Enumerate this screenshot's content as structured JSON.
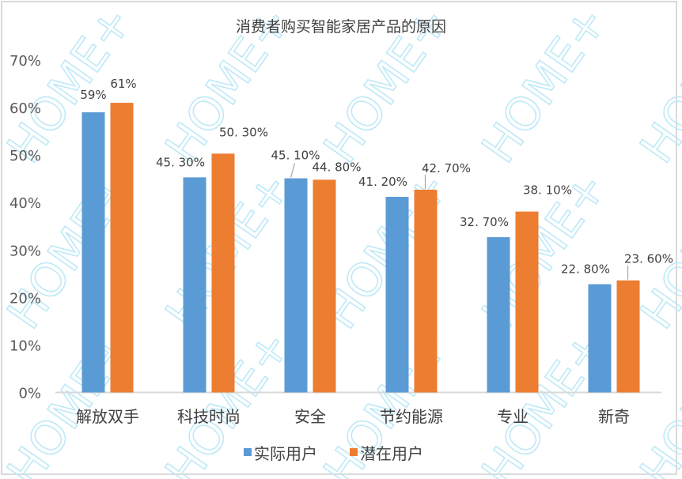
{
  "chart_data": {
    "type": "bar",
    "title": "消费者购买智能家居产品的原因",
    "xlabel": "",
    "ylabel": "",
    "ylim": [
      0,
      0.7
    ],
    "y_ticks": [
      "0%",
      "10%",
      "20%",
      "30%",
      "40%",
      "50%",
      "60%",
      "70%"
    ],
    "grid": false,
    "legend_position": "bottom",
    "categories": [
      "解放双手",
      "科技时尚",
      "安全",
      "节约能源",
      "专业",
      "新奇"
    ],
    "series": [
      {
        "name": "实际用户",
        "color": "#5B9BD5",
        "values": [
          0.59,
          0.453,
          0.451,
          0.412,
          0.327,
          0.228
        ],
        "labels": [
          "59%",
          "45. 30%",
          "45. 10%",
          "41. 20%",
          "32. 70%",
          "22. 80%"
        ]
      },
      {
        "name": "潜在用户",
        "color": "#ED7D31",
        "values": [
          0.61,
          0.503,
          0.448,
          0.427,
          0.381,
          0.236
        ],
        "labels": [
          "61%",
          "50. 30%",
          "44. 80%",
          "42. 70%",
          "38. 10%",
          "23. 60%"
        ]
      }
    ],
    "watermark": "HOME+"
  }
}
